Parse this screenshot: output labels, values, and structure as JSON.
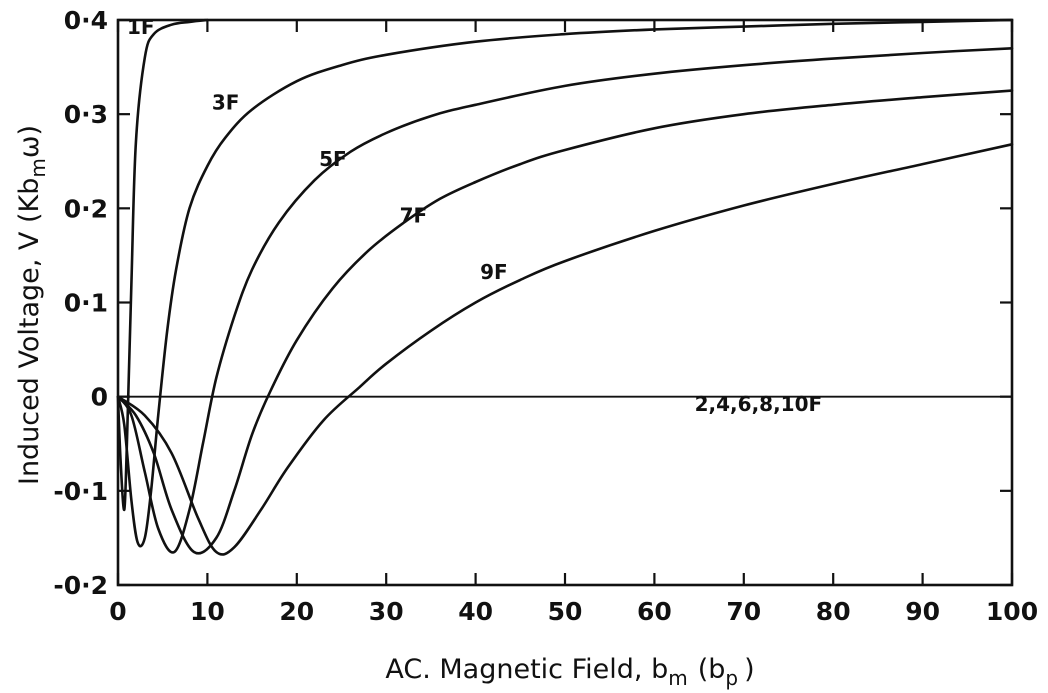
{
  "chart_data": {
    "type": "line",
    "xlabel": "AC. Magnetic Field, b",
    "xlabel_sub": "m",
    "xlabel_paren": "(b",
    "xlabel_paren_sub": "p",
    "xlabel_close": ")",
    "ylabel": "Induced Voltage, V (Kb",
    "ylabel_sub": "m",
    "ylabel_end": "ω)",
    "xlim": [
      0,
      100
    ],
    "ylim": [
      -0.2,
      0.4
    ],
    "x_ticks": [
      0,
      10,
      20,
      30,
      40,
      50,
      60,
      70,
      80,
      90,
      100
    ],
    "x_tick_labels": [
      "0",
      "10",
      "20",
      "30",
      "40",
      "50",
      "60",
      "70",
      "80",
      "90",
      "100"
    ],
    "y_ticks": [
      -0.2,
      -0.1,
      0,
      0.1,
      0.2,
      0.3,
      0.4
    ],
    "y_tick_labels": [
      "-0·2",
      "-0·1",
      "0",
      "0·1",
      "0·2",
      "0·3",
      "0·4"
    ],
    "grid": false,
    "series": [
      {
        "name": "1F",
        "label_at": [
          1.0,
          0.385
        ],
        "x": [
          0,
          0.3,
          0.7,
          1.0,
          1.5,
          2.0,
          3.0,
          4.0,
          6.0,
          8.0,
          10.0
        ],
        "y": [
          0,
          -0.07,
          -0.12,
          -0.05,
          0.12,
          0.27,
          0.36,
          0.385,
          0.395,
          0.398,
          0.4
        ]
      },
      {
        "name": "3F",
        "label_at": [
          10.5,
          0.305
        ],
        "x": [
          0,
          0.7,
          1.5,
          2.2,
          3.0,
          3.7,
          4.5,
          5.5,
          6.5,
          8,
          10,
          12,
          15,
          20,
          25,
          30,
          40,
          50,
          60,
          70,
          80,
          90,
          100
        ],
        "y": [
          0,
          -0.03,
          -0.11,
          -0.155,
          -0.15,
          -0.1,
          -0.02,
          0.07,
          0.135,
          0.2,
          0.245,
          0.275,
          0.305,
          0.335,
          0.352,
          0.363,
          0.377,
          0.385,
          0.39,
          0.393,
          0.396,
          0.398,
          0.4
        ]
      },
      {
        "name": "5F",
        "label_at": [
          22.5,
          0.245
        ],
        "x": [
          0,
          1.5,
          3,
          4.5,
          6.3,
          8,
          9.5,
          11,
          13,
          15,
          18,
          22,
          26,
          30,
          35,
          40,
          50,
          60,
          70,
          80,
          90,
          100
        ],
        "y": [
          0,
          -0.02,
          -0.08,
          -0.14,
          -0.165,
          -0.12,
          -0.05,
          0.02,
          0.085,
          0.135,
          0.185,
          0.23,
          0.26,
          0.28,
          0.298,
          0.31,
          0.33,
          0.343,
          0.352,
          0.359,
          0.365,
          0.37
        ]
      },
      {
        "name": "7F",
        "label_at": [
          31.5,
          0.185
        ],
        "x": [
          0,
          2,
          4,
          6,
          8.5,
          11,
          13,
          15,
          17,
          20,
          24,
          28,
          32,
          36,
          40,
          45,
          50,
          60,
          70,
          80,
          90,
          100
        ],
        "y": [
          0,
          -0.02,
          -0.06,
          -0.12,
          -0.165,
          -0.15,
          -0.1,
          -0.04,
          0.005,
          0.06,
          0.115,
          0.155,
          0.185,
          0.21,
          0.228,
          0.247,
          0.262,
          0.285,
          0.3,
          0.31,
          0.318,
          0.325
        ]
      },
      {
        "name": "9F",
        "label_at": [
          40.5,
          0.125
        ],
        "x": [
          0,
          3,
          6,
          9,
          11,
          13,
          16,
          19,
          23,
          27,
          30,
          35,
          40,
          45,
          50,
          60,
          70,
          80,
          90,
          100
        ],
        "y": [
          0,
          -0.02,
          -0.06,
          -0.13,
          -0.165,
          -0.16,
          -0.12,
          -0.075,
          -0.025,
          0.01,
          0.035,
          0.07,
          0.1,
          0.124,
          0.144,
          0.176,
          0.203,
          0.226,
          0.247,
          0.268
        ]
      },
      {
        "name": "2,4,6,8,10F",
        "label_at": [
          64.5,
          -0.015
        ],
        "x": [
          0,
          100
        ],
        "y": [
          0,
          0
        ]
      }
    ]
  }
}
